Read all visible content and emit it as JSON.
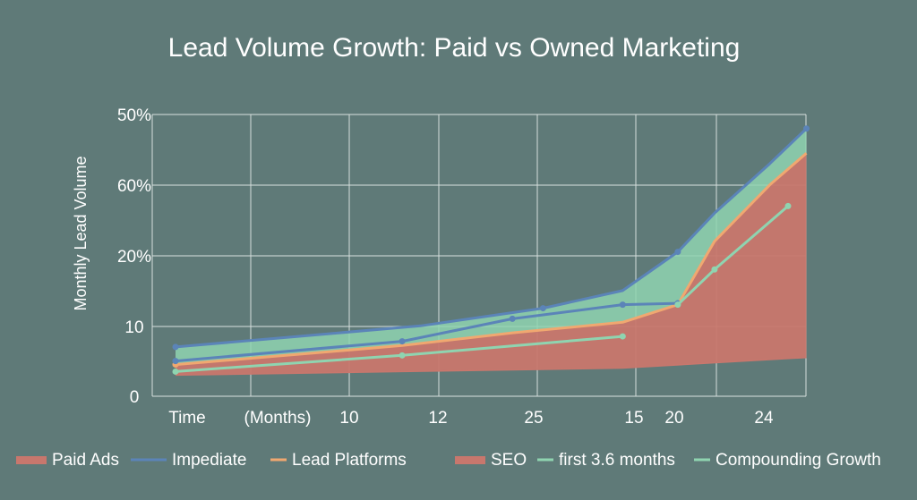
{
  "chart_data": {
    "type": "area",
    "title": "Lead Volume Growth: Paid vs Owned Marketing",
    "xlabel": "",
    "ylabel": "Monthly Lead Volume",
    "x_tick_labels": [
      "Time",
      "(Months)",
      "10",
      "12",
      "25",
      "15",
      "20",
      "24"
    ],
    "y_tick_labels": [
      "0",
      "10",
      "20%",
      "60%",
      "50%"
    ],
    "x_range": [
      0,
      10
    ],
    "y_range": [
      0,
      40
    ],
    "grid": true,
    "legend_placement": "bottom",
    "legend": [
      {
        "label": "Paid Ads",
        "color": "#c8776d",
        "style": "band"
      },
      {
        "label": "Impediate",
        "color": "#5b84b8",
        "style": "line"
      },
      {
        "label": "Lead Platforms",
        "color": "#f0a870",
        "style": "line"
      },
      {
        "label": "SEO",
        "color": "#c8776d",
        "style": "band"
      },
      {
        "label": "first 3.6 months",
        "color": "#8fd4b0",
        "style": "line"
      },
      {
        "label": "Compounding Growth",
        "color": "#8fd4b0",
        "style": "line"
      }
    ],
    "series": [
      {
        "role": "green-area-top",
        "color": "#5b84b8",
        "x": [
          0,
          2,
          4,
          6,
          7.3,
          8.2,
          8.8,
          9.7,
          10.3
        ],
        "y": [
          7,
          8.5,
          10,
          12.5,
          15,
          20.5,
          26,
          33,
          38
        ]
      },
      {
        "role": "red-area-top",
        "color": "#f0a870",
        "x": [
          0,
          1.8,
          3.7,
          5.5,
          7.3,
          8.2,
          8.8,
          9.7,
          10.3
        ],
        "y": [
          4.5,
          5.8,
          7.2,
          9,
          10.5,
          13,
          22,
          30,
          34.5
        ]
      },
      {
        "role": "red-area-bottom",
        "color": "#c8776d",
        "x": [
          0,
          3.7,
          7.3,
          10.3
        ],
        "y": [
          3,
          3.5,
          4,
          5.5
        ]
      },
      {
        "role": "blue-mid-line",
        "color": "#5b84b8",
        "x": [
          0,
          3.7,
          5.5,
          7.3,
          8.2
        ],
        "y": [
          5,
          7.8,
          11,
          13,
          13.2
        ]
      },
      {
        "role": "green-lower-line",
        "color": "#8fd4b0",
        "x": [
          0,
          3.7,
          7.3
        ],
        "y": [
          3.5,
          5.8,
          8.5
        ]
      },
      {
        "role": "green-upper-line",
        "color": "#8fd4b0",
        "x": [
          8.2,
          8.8,
          10
        ],
        "y": [
          13,
          18,
          27
        ]
      }
    ]
  }
}
